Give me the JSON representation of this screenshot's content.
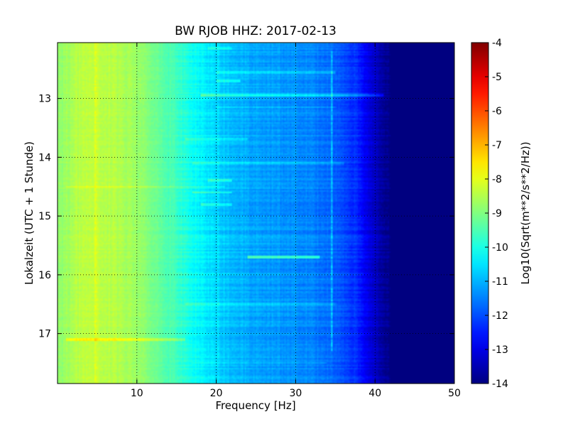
{
  "chart_data": {
    "type": "heatmap",
    "title": "BW RJOB HHZ: 2017-02-13",
    "xlabel": "Frequency [Hz]",
    "ylabel": "Lokalzeit (UTC + 1 Stunde)",
    "xlim": [
      0,
      50
    ],
    "ylim": [
      12.05,
      17.85
    ],
    "y_inverted": true,
    "x_ticks": [
      "10",
      "20",
      "30",
      "40",
      "50"
    ],
    "x_tick_values": [
      10,
      20,
      30,
      40,
      50
    ],
    "y_ticks": [
      "13",
      "14",
      "15",
      "16",
      "17"
    ],
    "y_tick_values": [
      13,
      14,
      15,
      16,
      17
    ],
    "grid": true,
    "colormap": "jet",
    "colorbar": {
      "label": "Log10(Sqrt(m**2/s**2/Hz))",
      "range": [
        -14,
        -4
      ],
      "ticks": [
        "-4",
        "-5",
        "-6",
        "-7",
        "-8",
        "-9",
        "-10",
        "-11",
        "-12",
        "-13",
        "-14"
      ],
      "tick_values": [
        -4,
        -5,
        -6,
        -7,
        -8,
        -9,
        -10,
        -11,
        -12,
        -13,
        -14
      ]
    },
    "spectral_profile": {
      "frequency_hz": [
        0,
        2,
        4,
        6,
        8,
        10,
        12,
        14,
        16,
        18,
        20,
        22,
        24,
        26,
        28,
        30,
        32,
        34,
        35,
        36,
        38,
        39,
        40,
        41,
        42,
        50
      ],
      "value": [
        -8.9,
        -8.5,
        -8.4,
        -8.4,
        -8.55,
        -8.75,
        -9.05,
        -9.45,
        -9.9,
        -10.3,
        -10.6,
        -10.9,
        -11.05,
        -11.15,
        -11.25,
        -11.35,
        -11.45,
        -11.6,
        -11.75,
        -11.95,
        -12.4,
        -12.9,
        -13.3,
        -13.7,
        -14.0,
        -14.0
      ]
    },
    "horizontal_features": [
      {
        "time": 12.15,
        "fmin": 19,
        "fmax": 22,
        "delta": 0.5
      },
      {
        "time": 12.55,
        "fmin": 20,
        "fmax": 35,
        "delta": 0.6
      },
      {
        "time": 12.7,
        "fmin": 20,
        "fmax": 23,
        "delta": 0.8
      },
      {
        "time": 12.95,
        "fmin": 18,
        "fmax": 41,
        "delta": 0.9
      },
      {
        "time": 13.15,
        "fmin": 20,
        "fmax": 35,
        "delta": 0.5
      },
      {
        "time": 13.7,
        "fmin": 16,
        "fmax": 24,
        "delta": 0.5
      },
      {
        "time": 14.1,
        "fmin": 17,
        "fmax": 36,
        "delta": 0.5
      },
      {
        "time": 14.4,
        "fmin": 19,
        "fmax": 22,
        "delta": 0.8
      },
      {
        "time": 14.5,
        "fmin": 1,
        "fmax": 21,
        "delta": 0.4
      },
      {
        "time": 14.6,
        "fmin": 17,
        "fmax": 22,
        "delta": 0.9
      },
      {
        "time": 14.8,
        "fmin": 18,
        "fmax": 22,
        "delta": 0.7
      },
      {
        "time": 15.7,
        "fmin": 24,
        "fmax": 33,
        "delta": 1.4
      },
      {
        "time": 16.5,
        "fmin": 16,
        "fmax": 35,
        "delta": 0.4
      },
      {
        "time": 17.1,
        "fmin": 1,
        "fmax": 16,
        "delta": 0.8
      },
      {
        "time": 17.5,
        "fmin": 17,
        "fmax": 34,
        "delta": 0.4
      }
    ],
    "vertical_features": [
      {
        "frequency": 4.8,
        "tmin": 12.05,
        "tmax": 17.85,
        "delta": 0.3
      },
      {
        "frequency": 20.3,
        "tmin": 12.05,
        "tmax": 17.85,
        "delta": 0.25
      },
      {
        "frequency": 34.5,
        "tmin": 12.2,
        "tmax": 17.3,
        "delta": 0.8
      }
    ]
  }
}
